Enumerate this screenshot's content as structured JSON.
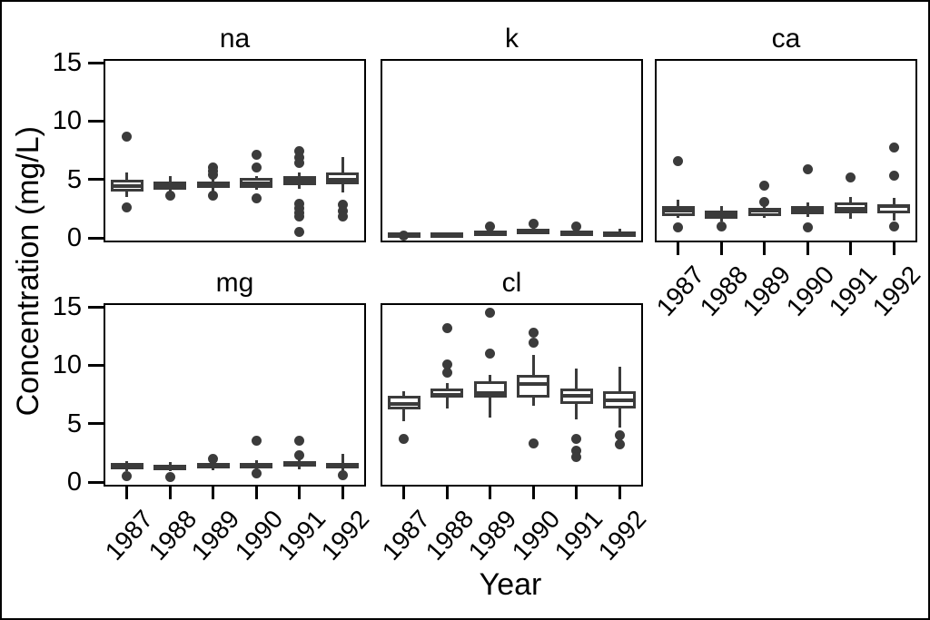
{
  "figure": {
    "background": "#ffffff",
    "box_color": "#3b3b3b",
    "axis_color": "#000000"
  },
  "chart_data": {
    "type": "boxplot",
    "title": "",
    "xlabel": "Year",
    "ylabel": "Concentration (mg/L)",
    "ylim": [
      0,
      15
    ],
    "y_ticks": [
      0,
      5,
      10,
      15
    ],
    "x_categories": [
      "1987",
      "1988",
      "1989",
      "1990",
      "1991",
      "1992"
    ],
    "facets": [
      "na",
      "k",
      "ca",
      "mg",
      "cl"
    ],
    "grid": false,
    "legend": "none",
    "panels": [
      {
        "title": "na",
        "row": 0,
        "col": 0,
        "y_axis": true,
        "x_axis": false,
        "boxes": [
          {
            "year": "1987",
            "low": 3.5,
            "q1": 4.0,
            "median": 4.4,
            "q3": 5.0,
            "high": 5.6,
            "outliers": [
              8.7,
              2.6
            ]
          },
          {
            "year": "1988",
            "low": 3.9,
            "q1": 4.1,
            "median": 4.4,
            "q3": 4.8,
            "high": 5.3,
            "outliers": [
              3.6
            ]
          },
          {
            "year": "1989",
            "low": 4.0,
            "q1": 4.3,
            "median": 4.6,
            "q3": 4.8,
            "high": 5.1,
            "outliers": [
              6.0,
              5.7,
              5.4,
              3.6
            ]
          },
          {
            "year": "1990",
            "low": 4.1,
            "q1": 4.3,
            "median": 4.7,
            "q3": 5.1,
            "high": 5.3,
            "outliers": [
              7.1,
              6.0,
              3.4
            ]
          },
          {
            "year": "1991",
            "low": 4.2,
            "q1": 4.5,
            "median": 4.9,
            "q3": 5.3,
            "high": 5.6,
            "outliers": [
              7.4,
              6.9,
              6.4,
              2.9,
              2.5,
              2.1,
              1.8,
              0.5
            ]
          },
          {
            "year": "1992",
            "low": 3.9,
            "q1": 4.6,
            "median": 5.0,
            "q3": 5.6,
            "high": 6.9,
            "outliers": [
              2.8,
              2.3,
              1.8
            ]
          }
        ]
      },
      {
        "title": "k",
        "row": 0,
        "col": 1,
        "y_axis": false,
        "x_axis": false,
        "boxes": [
          {
            "year": "1987",
            "low": 0.1,
            "q1": 0.15,
            "median": 0.3,
            "q3": 0.45,
            "high": 0.55,
            "outliers": [
              0.2
            ]
          },
          {
            "year": "1988",
            "low": 0.15,
            "q1": 0.2,
            "median": 0.3,
            "q3": 0.45,
            "high": 0.5,
            "outliers": []
          },
          {
            "year": "1989",
            "low": 0.2,
            "q1": 0.3,
            "median": 0.45,
            "q3": 0.6,
            "high": 0.7,
            "outliers": [
              0.95
            ]
          },
          {
            "year": "1990",
            "low": 0.35,
            "q1": 0.45,
            "median": 0.6,
            "q3": 0.8,
            "high": 0.9,
            "outliers": [
              1.2
            ]
          },
          {
            "year": "1991",
            "low": 0.25,
            "q1": 0.35,
            "median": 0.5,
            "q3": 0.65,
            "high": 0.75,
            "outliers": [
              1.0
            ]
          },
          {
            "year": "1992",
            "low": 0.2,
            "q1": 0.3,
            "median": 0.4,
            "q3": 0.55,
            "high": 0.8,
            "outliers": []
          }
        ]
      },
      {
        "title": "ca",
        "row": 0,
        "col": 2,
        "y_axis": false,
        "x_axis": true,
        "boxes": [
          {
            "year": "1987",
            "low": 1.7,
            "q1": 1.9,
            "median": 2.3,
            "q3": 2.7,
            "high": 3.3,
            "outliers": [
              6.6,
              0.9
            ]
          },
          {
            "year": "1988",
            "low": 1.4,
            "q1": 1.6,
            "median": 2.0,
            "q3": 2.3,
            "high": 2.7,
            "outliers": [
              1.0
            ]
          },
          {
            "year": "1989",
            "low": 1.7,
            "q1": 1.9,
            "median": 2.3,
            "q3": 2.6,
            "high": 2.9,
            "outliers": [
              4.5,
              3.1
            ]
          },
          {
            "year": "1990",
            "low": 1.8,
            "q1": 2.0,
            "median": 2.4,
            "q3": 2.7,
            "high": 3.0,
            "outliers": [
              5.9,
              0.9
            ]
          },
          {
            "year": "1991",
            "low": 1.6,
            "q1": 2.1,
            "median": 2.5,
            "q3": 3.0,
            "high": 3.5,
            "outliers": [
              5.2
            ]
          },
          {
            "year": "1992",
            "low": 1.5,
            "q1": 2.1,
            "median": 2.7,
            "q3": 2.9,
            "high": 3.4,
            "outliers": [
              7.7,
              5.3,
              1.0
            ]
          }
        ]
      },
      {
        "title": "mg",
        "row": 1,
        "col": 0,
        "y_axis": true,
        "x_axis": true,
        "boxes": [
          {
            "year": "1987",
            "low": 0.9,
            "q1": 1.1,
            "median": 1.35,
            "q3": 1.6,
            "high": 1.8,
            "outliers": [
              0.5
            ]
          },
          {
            "year": "1988",
            "low": 0.9,
            "q1": 1.0,
            "median": 1.25,
            "q3": 1.5,
            "high": 1.7,
            "outliers": [
              0.45
            ]
          },
          {
            "year": "1989",
            "low": 1.0,
            "q1": 1.15,
            "median": 1.4,
            "q3": 1.6,
            "high": 1.8,
            "outliers": [
              2.0
            ]
          },
          {
            "year": "1990",
            "low": 1.0,
            "q1": 1.15,
            "median": 1.4,
            "q3": 1.6,
            "high": 1.9,
            "outliers": [
              3.5,
              0.7
            ]
          },
          {
            "year": "1991",
            "low": 1.1,
            "q1": 1.3,
            "median": 1.55,
            "q3": 1.75,
            "high": 2.0,
            "outliers": [
              3.5,
              2.3
            ]
          },
          {
            "year": "1992",
            "low": 0.95,
            "q1": 1.15,
            "median": 1.4,
            "q3": 1.65,
            "high": 2.4,
            "outliers": [
              0.6
            ]
          }
        ]
      },
      {
        "title": "cl",
        "row": 1,
        "col": 1,
        "y_axis": false,
        "x_axis": true,
        "boxes": [
          {
            "year": "1987",
            "low": 5.2,
            "q1": 6.2,
            "median": 6.7,
            "q3": 7.4,
            "high": 7.8,
            "outliers": [
              3.7
            ]
          },
          {
            "year": "1988",
            "low": 6.3,
            "q1": 7.2,
            "median": 7.5,
            "q3": 8.0,
            "high": 8.5,
            "outliers": [
              13.2,
              10.1,
              9.4
            ]
          },
          {
            "year": "1989",
            "low": 5.5,
            "q1": 7.2,
            "median": 7.6,
            "q3": 8.6,
            "high": 9.2,
            "outliers": [
              14.5,
              11.0
            ]
          },
          {
            "year": "1990",
            "low": 6.5,
            "q1": 7.2,
            "median": 8.4,
            "q3": 9.2,
            "high": 10.9,
            "outliers": [
              12.8,
              11.9,
              3.3
            ]
          },
          {
            "year": "1991",
            "low": 5.4,
            "q1": 6.7,
            "median": 7.4,
            "q3": 8.0,
            "high": 9.7,
            "outliers": [
              3.7,
              2.7,
              2.1
            ]
          },
          {
            "year": "1992",
            "low": 4.7,
            "q1": 6.3,
            "median": 7.0,
            "q3": 7.8,
            "high": 9.9,
            "outliers": [
              4.0,
              3.2
            ]
          }
        ]
      }
    ]
  }
}
